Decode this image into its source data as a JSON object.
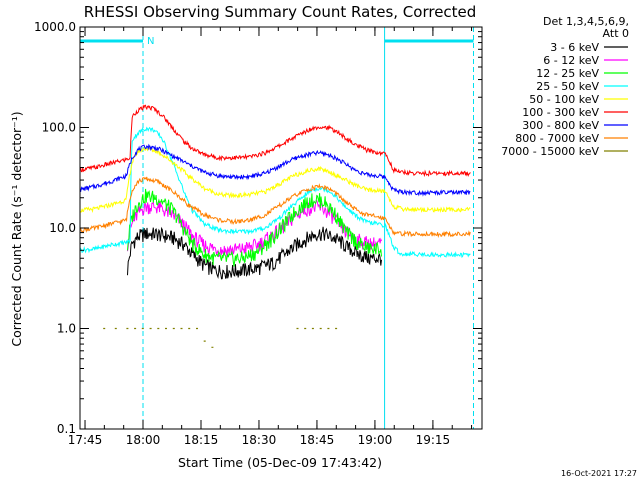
{
  "chart_data": {
    "type": "line",
    "title": "RHESSI Observing Summary Count Rates, Corrected",
    "xlabel": "Start Time (05-Dec-09 17:43:42)",
    "ylabel": "Corrected Count Rate (s⁻¹ detector⁻¹)",
    "y_scale": "log",
    "ylim": [
      0.1,
      1000
    ],
    "xlim_minutes": [
      0,
      104
    ],
    "x_tick_labels": [
      "17:45",
      "18:00",
      "18:15",
      "18:30",
      "18:45",
      "19:00",
      "19:15"
    ],
    "x_tick_minutes": [
      1.3,
      16.3,
      31.3,
      46.3,
      61.3,
      76.3,
      91.3
    ],
    "y_tick_labels": [
      "0.1",
      "1.0",
      "10.0",
      "100.0",
      "1000.0"
    ],
    "y_tick_values": [
      0.1,
      1,
      10,
      100,
      1000
    ],
    "legend_header": [
      "Det 1,3,4,5,6,9,",
      "Att 0"
    ],
    "legend_placement": "top-right, outside plot",
    "flag_label": "N",
    "timestamp": "16-Oct-2021 17:27",
    "night_intervals_minutes": [
      [
        0,
        16.3
      ],
      [
        78.8,
        101.8
      ]
    ],
    "series": [
      {
        "name": "3 - 6 keV",
        "color": "#000000",
        "x": [
          12.3,
          13.5,
          15,
          17,
          20,
          24,
          27,
          29,
          32,
          35,
          38,
          42,
          46,
          50,
          53,
          56,
          59,
          61,
          63,
          65,
          67,
          69,
          72,
          75,
          78
        ],
        "y": [
          3.8,
          7.0,
          8.2,
          8.8,
          8.7,
          8.0,
          6.8,
          5.5,
          4.3,
          3.8,
          3.7,
          3.8,
          4.0,
          4.5,
          5.5,
          6.8,
          8.0,
          8.8,
          8.8,
          8.2,
          7.5,
          6.5,
          5.5,
          5.0,
          5.0
        ]
      },
      {
        "name": "6 - 12 keV",
        "color": "#ff00ff",
        "x": [
          12.3,
          13.5,
          15,
          17,
          20,
          24,
          27,
          29,
          32,
          35,
          38,
          42,
          46,
          50,
          53,
          56,
          59,
          61,
          63,
          65,
          67,
          69,
          72,
          75,
          78
        ],
        "y": [
          7.0,
          11.0,
          14.0,
          16.5,
          16.2,
          13.5,
          10.5,
          8.3,
          6.8,
          6.2,
          6.0,
          6.2,
          6.8,
          8.5,
          10.5,
          13.5,
          15.8,
          16.2,
          15.5,
          13.5,
          11.0,
          9.0,
          7.5,
          7.0,
          7.0
        ]
      },
      {
        "name": "12 - 25 keV",
        "color": "#00ff00",
        "x": [
          12.3,
          13.5,
          15,
          17,
          20,
          24,
          27,
          29,
          32,
          35,
          38,
          42,
          46,
          50,
          53,
          56,
          59,
          61,
          63,
          65,
          67,
          69,
          72,
          75,
          78
        ],
        "y": [
          6.5,
          13.0,
          17.5,
          21.0,
          20.0,
          15.0,
          9.5,
          7.0,
          5.5,
          5.0,
          4.9,
          5.0,
          5.8,
          8.0,
          11.0,
          15.0,
          18.5,
          19.5,
          18.5,
          15.5,
          12.0,
          9.0,
          7.0,
          6.2,
          6.2
        ]
      },
      {
        "name": "25 - 50 keV",
        "color": "#00ffff",
        "x": [
          0,
          4,
          8,
          12,
          13,
          13.5,
          15,
          17,
          19,
          21,
          23,
          25,
          27,
          29,
          32,
          36,
          40,
          44,
          48,
          52,
          56,
          60,
          62,
          64,
          66,
          68,
          71,
          74,
          77,
          79,
          81,
          83,
          87,
          92,
          97,
          101
        ],
        "y": [
          6.0,
          6.2,
          6.8,
          7.2,
          7.5,
          75.0,
          88.0,
          98.0,
          95.0,
          80.0,
          55.0,
          35.0,
          22.0,
          15.0,
          11.0,
          9.5,
          9.2,
          9.3,
          10.0,
          13.0,
          18.0,
          24.0,
          25.0,
          24.0,
          21.0,
          17.0,
          13.5,
          11.5,
          11.0,
          10.5,
          6.5,
          5.5,
          5.5,
          5.4,
          5.4,
          5.4
        ]
      },
      {
        "name": "50 - 100 keV",
        "color": "#ffff00",
        "x": [
          0,
          4,
          8,
          12,
          13.5,
          15,
          17,
          20,
          24,
          28,
          32,
          36,
          40,
          44,
          48,
          52,
          56,
          60,
          62,
          64,
          66,
          68,
          71,
          74,
          77,
          79,
          81,
          83,
          87,
          92,
          97,
          101
        ],
        "y": [
          15.0,
          15.5,
          17.0,
          19.0,
          45.0,
          58.0,
          62.0,
          58.0,
          45.0,
          33.0,
          25.0,
          21.5,
          21.0,
          21.5,
          23.0,
          28.0,
          34.0,
          38.0,
          39.0,
          37.0,
          34.0,
          31.0,
          27.0,
          24.0,
          23.5,
          23.0,
          16.5,
          15.5,
          15.3,
          15.2,
          15.2,
          15.2
        ]
      },
      {
        "name": "100 - 300 keV",
        "color": "#ff0000",
        "x": [
          0,
          4,
          8,
          12,
          13,
          13.5,
          15,
          17,
          19,
          21,
          23,
          25,
          27,
          29,
          32,
          36,
          40,
          44,
          48,
          52,
          56,
          60,
          62,
          64,
          66,
          68,
          71,
          74,
          77,
          79,
          81,
          83,
          87,
          92,
          97,
          101
        ],
        "y": [
          38.0,
          40.0,
          44.0,
          48.0,
          50.0,
          128.0,
          148.0,
          160.0,
          155.0,
          135.0,
          110.0,
          88.0,
          72.0,
          62.0,
          54.0,
          50.0,
          50.0,
          51.0,
          56.0,
          67.0,
          82.0,
          98.0,
          102.0,
          100.0,
          93.0,
          82.0,
          68.0,
          60.0,
          56.0,
          55.0,
          38.0,
          36.0,
          35.0,
          35.0,
          35.0,
          35.0
        ]
      },
      {
        "name": "300 - 800 keV",
        "color": "#0000ff",
        "x": [
          0,
          4,
          8,
          12,
          13.5,
          15,
          17,
          20,
          24,
          28,
          32,
          36,
          40,
          44,
          48,
          52,
          56,
          60,
          62,
          64,
          66,
          68,
          71,
          74,
          77,
          79,
          81,
          83,
          87,
          92,
          97,
          101
        ],
        "y": [
          24.0,
          26.0,
          29.0,
          33.0,
          50.0,
          60.0,
          65.0,
          62.0,
          52.0,
          43.0,
          36.0,
          33.0,
          32.0,
          32.5,
          35.0,
          42.0,
          50.0,
          55.0,
          56.0,
          54.0,
          50.0,
          45.0,
          38.0,
          34.0,
          33.0,
          32.0,
          24.0,
          23.0,
          22.5,
          22.5,
          22.5,
          22.5
        ]
      },
      {
        "name": "800 - 7000 keV",
        "color": "#ff8000",
        "x": [
          0,
          4,
          8,
          12,
          13.5,
          15,
          17,
          20,
          24,
          28,
          32,
          36,
          40,
          44,
          48,
          52,
          56,
          60,
          62,
          64,
          66,
          68,
          71,
          74,
          77,
          79,
          81,
          83,
          87,
          92,
          97,
          101
        ],
        "y": [
          9.5,
          10.0,
          11.0,
          12.0,
          24.0,
          29.0,
          31.0,
          29.0,
          23.0,
          17.0,
          13.5,
          12.0,
          11.5,
          12.0,
          13.5,
          17.0,
          21.5,
          25.0,
          26.0,
          25.0,
          22.5,
          19.0,
          15.5,
          13.5,
          13.0,
          12.5,
          9.0,
          8.8,
          8.7,
          8.7,
          8.7,
          8.7
        ]
      },
      {
        "name": "7000 - 15000 keV",
        "color": "#808000",
        "x": [
          6,
          9,
          12,
          14,
          16,
          18,
          20,
          22,
          24,
          26,
          28,
          30,
          32,
          34,
          56,
          58,
          60,
          62,
          64,
          66
        ],
        "y": [
          1.0,
          1.0,
          1.0,
          1.0,
          1.0,
          1.0,
          1.0,
          1.0,
          1.0,
          1.0,
          1.0,
          1.0,
          0.75,
          0.65,
          1.0,
          1.0,
          1.0,
          1.0,
          1.0,
          1.0
        ]
      }
    ]
  }
}
